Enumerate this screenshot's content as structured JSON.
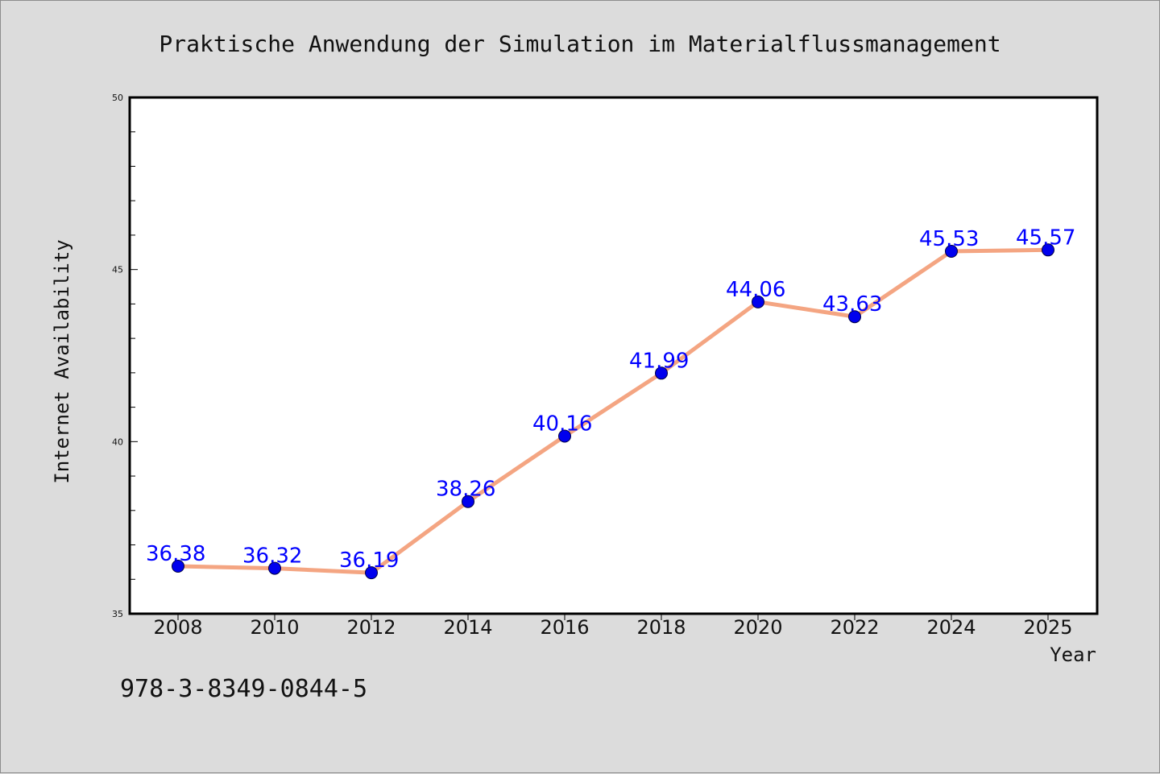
{
  "chart_data": {
    "type": "line",
    "title": "Praktische Anwendung der Simulation im Materialflussmanagement",
    "xlabel": "Year",
    "ylabel": "Internet Availability",
    "x": [
      "2008",
      "2010",
      "2012",
      "2014",
      "2016",
      "2018",
      "2020",
      "2022",
      "2024",
      "2025"
    ],
    "values": [
      36.38,
      36.32,
      36.19,
      38.26,
      40.16,
      41.99,
      44.06,
      43.63,
      45.53,
      45.57
    ],
    "data_labels": [
      "36.38",
      "36.32",
      "36.19",
      "38.26",
      "40.16",
      "41.99",
      "44.06",
      "43.63",
      "45.53",
      "45.57"
    ],
    "ylim": [
      35,
      50
    ],
    "yticks": [
      "35",
      "40",
      "45",
      "50"
    ],
    "grid": false,
    "line_color": "#f4a582",
    "marker_color": "#0000ee",
    "label_color": "#0000ff"
  },
  "footnote": "978-3-8349-0844-5"
}
